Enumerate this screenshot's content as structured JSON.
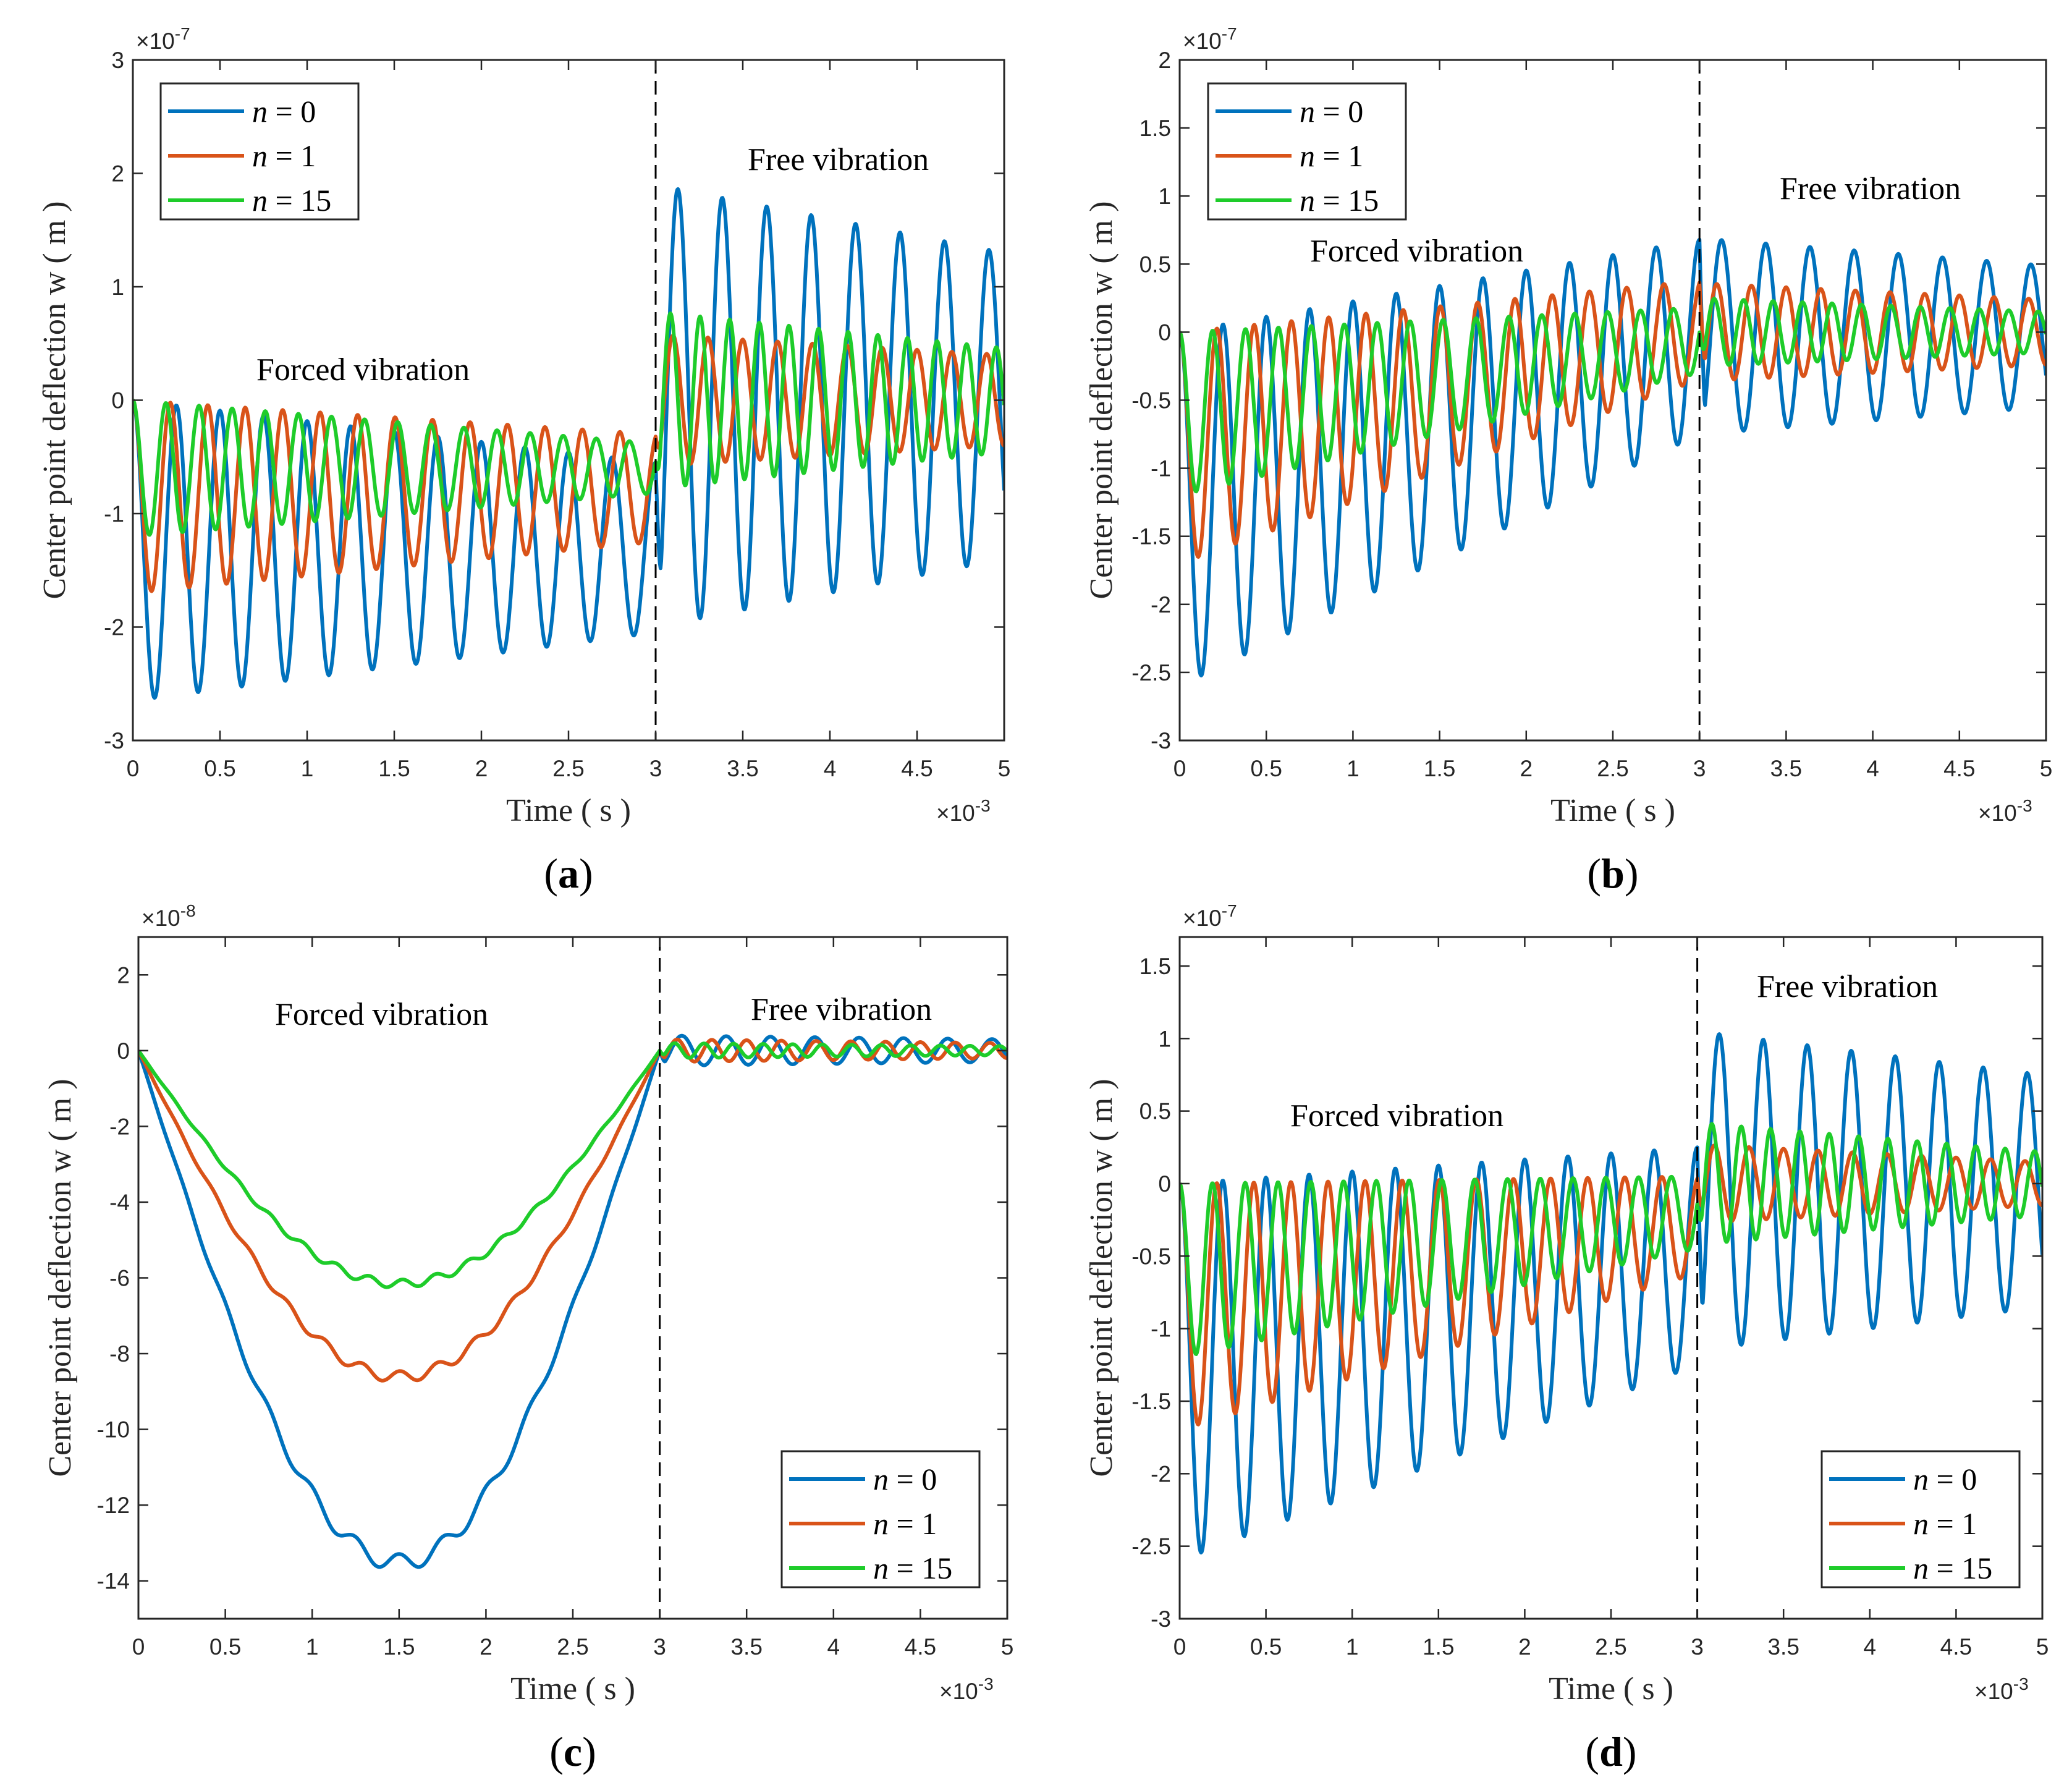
{
  "chart_data": [
    {
      "type": "line",
      "caption_open": "(",
      "caption_letter": "a",
      "caption_close": ")",
      "xlabel": "Time ( s )",
      "ylabel": "Center point deflection  w ( m )",
      "x_multiplier": "×10",
      "x_exponent": "-3",
      "y_multiplier": "×10",
      "y_exponent": "-7",
      "xlim": [
        0,
        5
      ],
      "ylim": [
        -3,
        3
      ],
      "xticks": [
        "0",
        "0.5",
        "1",
        "1.5",
        "2",
        "2.5",
        "3",
        "3.5",
        "4",
        "4.5",
        "5"
      ],
      "yticks": [
        {
          "v": -3,
          "label": "-3"
        },
        {
          "v": -2,
          "label": "-2"
        },
        {
          "v": -1,
          "label": "-1"
        },
        {
          "v": 0,
          "label": "0"
        },
        {
          "v": 1,
          "label": "1"
        },
        {
          "v": 2,
          "label": "2"
        },
        {
          "v": 3,
          "label": "3"
        }
      ],
      "divider_x": 3,
      "legend_placement": "top-left",
      "annotations": [
        "Forced vibration",
        "Free vibration"
      ],
      "series": [
        {
          "name_var": "n",
          "name_eq": " = 0",
          "color": "#0072BD",
          "forced": {
            "period": 0.25,
            "top": [
              0,
              -0.55
            ],
            "bottom": [
              -2.65,
              -2.05
            ]
          },
          "free": {
            "period": 0.255,
            "amp": [
              1.95,
              1.35
            ],
            "center": -0.05
          }
        },
        {
          "name_var": "n",
          "name_eq": " = 1",
          "color": "#D95319",
          "forced": {
            "period": 0.215,
            "top": [
              0,
              -0.3
            ],
            "bottom": [
              -1.7,
              -1.25
            ]
          },
          "free": {
            "period": 0.2,
            "amp": [
              0.58,
              0.4
            ],
            "center": 0
          }
        },
        {
          "name_var": "n",
          "name_eq": " = 15",
          "color": "#1ECC2A",
          "forced": {
            "period": 0.19,
            "top": [
              0,
              -0.38
            ],
            "bottom": [
              -1.2,
              -0.82
            ]
          },
          "free": {
            "period": 0.17,
            "amp": [
              0.78,
              0.46
            ],
            "center": 0
          }
        }
      ]
    },
    {
      "type": "line",
      "caption_open": "(",
      "caption_letter": "b",
      "caption_close": ")",
      "xlabel": "Time ( s )",
      "ylabel": "Center point deflection  w ( m )",
      "x_multiplier": "×10",
      "x_exponent": "-3",
      "y_multiplier": "×10",
      "y_exponent": "-7",
      "xlim": [
        0,
        5
      ],
      "ylim": [
        -3,
        2
      ],
      "xticks": [
        "0",
        "0.5",
        "1",
        "1.5",
        "2",
        "2.5",
        "3",
        "3.5",
        "4",
        "4.5",
        "5"
      ],
      "yticks": [
        {
          "v": -3,
          "label": "-3"
        },
        {
          "v": -2.5,
          "label": "-2.5"
        },
        {
          "v": -2,
          "label": "-2"
        },
        {
          "v": -1.5,
          "label": "-1.5"
        },
        {
          "v": -1,
          "label": "-1"
        },
        {
          "v": -0.5,
          "label": "-0.5"
        },
        {
          "v": 0,
          "label": "0"
        },
        {
          "v": 0.5,
          "label": "0.5"
        },
        {
          "v": 1,
          "label": "1"
        },
        {
          "v": 1.5,
          "label": "1.5"
        },
        {
          "v": 2,
          "label": "2"
        }
      ],
      "divider_x": 3,
      "legend_placement": "top-left",
      "annotations": [
        "Forced vibration",
        "Free vibration"
      ],
      "series": [
        {
          "name_var": "n",
          "name_eq": " = 0",
          "color": "#0072BD",
          "forced": {
            "period": 0.25,
            "top": [
              0,
              0.68
            ],
            "bottom": [
              -2.6,
              -0.75
            ]
          },
          "free": {
            "period": 0.255,
            "amp": [
              0.72,
              0.52
            ],
            "center": -0.03
          }
        },
        {
          "name_var": "n",
          "name_eq": " = 1",
          "color": "#D95319",
          "forced": {
            "period": 0.215,
            "top": [
              0,
              0.38
            ],
            "bottom": [
              -1.7,
              -0.35
            ]
          },
          "free": {
            "period": 0.2,
            "amp": [
              0.36,
              0.24
            ],
            "center": 0
          }
        },
        {
          "name_var": "n",
          "name_eq": " = 15",
          "color": "#1ECC2A",
          "forced": {
            "period": 0.19,
            "top": [
              0,
              0.18
            ],
            "bottom": [
              -1.2,
              -0.3
            ]
          },
          "free": {
            "period": 0.17,
            "amp": [
              0.25,
              0.15
            ],
            "center": 0
          }
        }
      ]
    },
    {
      "type": "line",
      "caption_open": "(",
      "caption_letter": "c",
      "caption_close": ")",
      "xlabel": "Time ( s )",
      "ylabel": "Center point deflection  w ( m )",
      "x_multiplier": "×10",
      "x_exponent": "-3",
      "y_multiplier": "×10",
      "y_exponent": "-8",
      "xlim": [
        0,
        5
      ],
      "ylim": [
        -15,
        3
      ],
      "xticks": [
        "0",
        "0.5",
        "1",
        "1.5",
        "2",
        "2.5",
        "3",
        "3.5",
        "4",
        "4.5",
        "5"
      ],
      "yticks": [
        {
          "v": -14,
          "label": "-14"
        },
        {
          "v": -12,
          "label": "-12"
        },
        {
          "v": -10,
          "label": "-10"
        },
        {
          "v": -8,
          "label": "-8"
        },
        {
          "v": -6,
          "label": "-6"
        },
        {
          "v": -4,
          "label": "-4"
        },
        {
          "v": -2,
          "label": "-2"
        },
        {
          "v": 0,
          "label": "0"
        },
        {
          "v": 2,
          "label": "2"
        }
      ],
      "divider_x": 3,
      "legend_placement": "bottom-right",
      "annotations": [
        "Forced vibration",
        "Free vibration"
      ],
      "series": [
        {
          "name_var": "n",
          "name_eq": " = 0",
          "color": "#0072BD",
          "bowl": {
            "depth": -13.2,
            "ripple": 0.45,
            "period": 0.25
          },
          "free": {
            "period": 0.255,
            "amp": [
              0.4,
              0.3
            ],
            "center": 0
          }
        },
        {
          "name_var": "n",
          "name_eq": " = 1",
          "color": "#D95319",
          "bowl": {
            "depth": -8.4,
            "ripple": 0.3,
            "period": 0.215
          },
          "free": {
            "period": 0.2,
            "amp": [
              0.3,
              0.2
            ],
            "center": 0
          }
        },
        {
          "name_var": "n",
          "name_eq": " = 15",
          "color": "#1ECC2A",
          "bowl": {
            "depth": -6.0,
            "ripple": 0.22,
            "period": 0.19
          },
          "free": {
            "period": 0.17,
            "amp": [
              0.2,
              0.12
            ],
            "center": 0
          }
        }
      ]
    },
    {
      "type": "line",
      "caption_open": "(",
      "caption_letter": "d",
      "caption_close": ")",
      "xlabel": "Time ( s )",
      "ylabel": "Center point deflection  w ( m )",
      "x_multiplier": "×10",
      "x_exponent": "-3",
      "y_multiplier": "×10",
      "y_exponent": "-7",
      "xlim": [
        0,
        5
      ],
      "ylim": [
        -3,
        1.7
      ],
      "xticks": [
        "0",
        "0.5",
        "1",
        "1.5",
        "2",
        "2.5",
        "3",
        "3.5",
        "4",
        "4.5",
        "5"
      ],
      "yticks": [
        {
          "v": -3,
          "label": "-3"
        },
        {
          "v": -2.5,
          "label": "-2.5"
        },
        {
          "v": -2,
          "label": "-2"
        },
        {
          "v": -1.5,
          "label": "-1.5"
        },
        {
          "v": -1,
          "label": "-1"
        },
        {
          "v": -0.5,
          "label": "-0.5"
        },
        {
          "v": 0,
          "label": "0"
        },
        {
          "v": 0.5,
          "label": "0.5"
        },
        {
          "v": 1,
          "label": "1"
        },
        {
          "v": 1.5,
          "label": "1.5"
        }
      ],
      "divider_x": 3,
      "legend_placement": "bottom-right",
      "annotations": [
        "Forced vibration",
        "Free vibration"
      ],
      "series": [
        {
          "name_var": "n",
          "name_eq": " = 0",
          "color": "#0072BD",
          "forced": {
            "period": 0.25,
            "top": [
              0,
              0.25
            ],
            "bottom": [
              -2.6,
              -1.25
            ]
          },
          "free": {
            "period": 0.255,
            "amp": [
              1.1,
              0.8
            ],
            "center": -0.05
          }
        },
        {
          "name_var": "n",
          "name_eq": " = 1",
          "color": "#D95319",
          "forced": {
            "period": 0.215,
            "top": [
              0,
              0.05
            ],
            "bottom": [
              -1.7,
              -0.62
            ]
          },
          "free": {
            "period": 0.2,
            "amp": [
              0.27,
              0.15
            ],
            "center": 0
          }
        },
        {
          "name_var": "n",
          "name_eq": " = 15",
          "color": "#1ECC2A",
          "forced": {
            "period": 0.19,
            "top": [
              0,
              0.05
            ],
            "bottom": [
              -1.2,
              -0.45
            ]
          },
          "free": {
            "period": 0.17,
            "amp": [
              0.42,
              0.22
            ],
            "center": 0
          }
        }
      ]
    }
  ]
}
